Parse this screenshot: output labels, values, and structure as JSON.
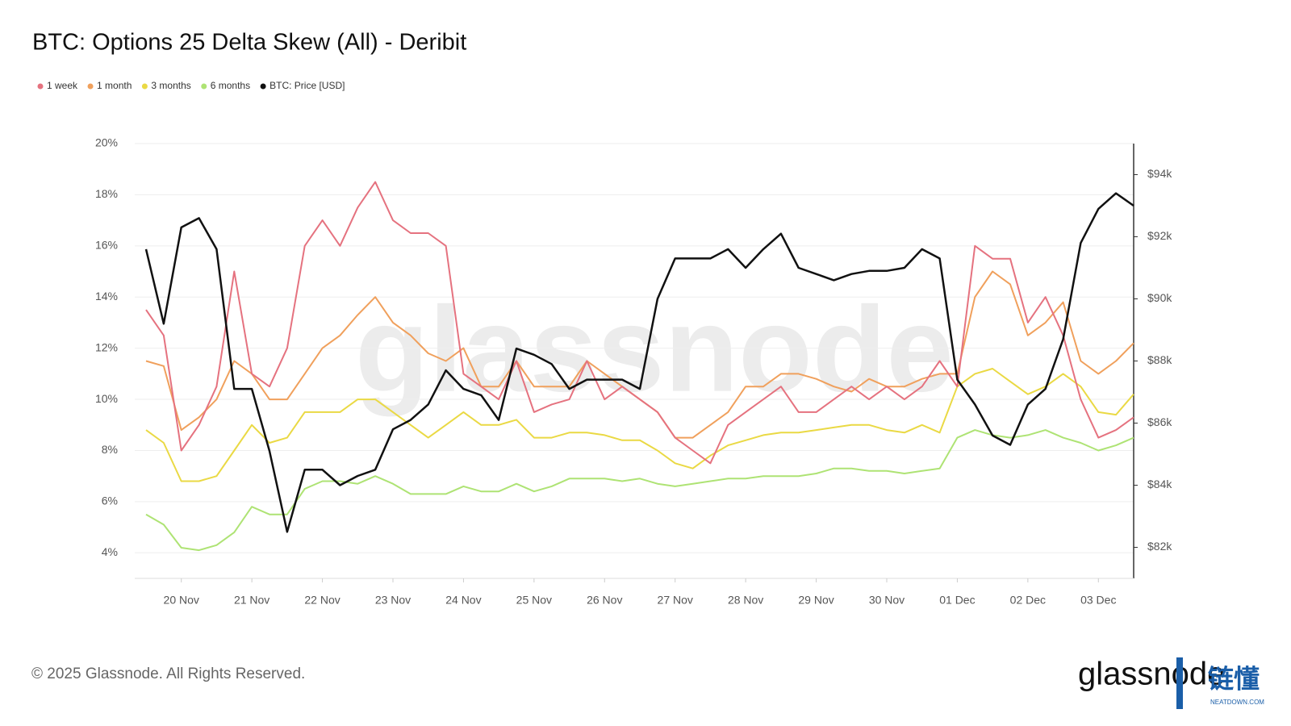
{
  "chart_data": {
    "type": "line",
    "title": "BTC: Options 25 Delta Skew (All) - Deribit",
    "watermark": "glassnode",
    "footer": "© 2025 Glassnode. All Rights Reserved.",
    "logo": "glassnode",
    "badge": {
      "title": "链懂",
      "subtitle": "NEATDOWN.COM"
    },
    "legend": "top-left",
    "grid": true,
    "categories": [
      null,
      null,
      "20 Nov",
      null,
      null,
      null,
      "21 Nov",
      null,
      null,
      null,
      "22 Nov",
      null,
      null,
      null,
      "23 Nov",
      null,
      null,
      null,
      "24 Nov",
      null,
      null,
      null,
      "25 Nov",
      null,
      null,
      null,
      "26 Nov",
      null,
      null,
      null,
      "27 Nov",
      null,
      null,
      null,
      "28 Nov",
      null,
      null,
      null,
      "29 Nov",
      null,
      null,
      null,
      "30 Nov",
      null,
      null,
      null,
      "01 Dec",
      null,
      null,
      null,
      "02 Dec",
      null,
      null,
      null,
      "03 Dec",
      null,
      null
    ],
    "ylim": [
      3,
      20
    ],
    "yticks": [
      {
        "value": 4,
        "label": "4%"
      },
      {
        "value": 6,
        "label": "6%"
      },
      {
        "value": 8,
        "label": "8%"
      },
      {
        "value": 10,
        "label": "10%"
      },
      {
        "value": 12,
        "label": "12%"
      },
      {
        "value": 14,
        "label": "14%"
      },
      {
        "value": 16,
        "label": "16%"
      },
      {
        "value": 18,
        "label": "18%"
      },
      {
        "value": 20,
        "label": "20%"
      }
    ],
    "y2lim": [
      81000,
      95000
    ],
    "y2ticks": [
      {
        "value": 82000,
        "label": "$82k"
      },
      {
        "value": 84000,
        "label": "$84k"
      },
      {
        "value": 86000,
        "label": "$86k"
      },
      {
        "value": 88000,
        "label": "$88k"
      },
      {
        "value": 90000,
        "label": "$90k"
      },
      {
        "value": 92000,
        "label": "$92k"
      },
      {
        "value": 94000,
        "label": "$94k"
      }
    ],
    "series": [
      {
        "name": "1 week",
        "color": "#e5727f",
        "values": [
          13.5,
          12.5,
          8,
          9,
          10.5,
          15,
          11,
          10.5,
          12,
          16,
          17,
          16,
          17.5,
          18.5,
          17,
          16.5,
          16.5,
          16,
          11,
          10.5,
          10,
          11.5,
          9.5,
          9.8,
          10,
          11.5,
          10,
          10.5,
          10,
          9.5,
          8.5,
          8,
          7.5,
          9,
          9.5,
          10,
          10.5,
          9.5,
          9.5,
          10,
          10.5,
          10,
          10.5,
          10,
          10.5,
          11.5,
          10.5,
          16,
          15.5,
          15.5,
          13,
          14,
          12.5,
          10,
          8.5,
          8.8,
          9.3
        ]
      },
      {
        "name": "1 month",
        "color": "#f0a05c",
        "values": [
          11.5,
          11.3,
          8.8,
          9.3,
          10,
          11.5,
          11,
          10,
          10,
          11,
          12,
          12.5,
          13.3,
          14,
          13,
          12.5,
          11.8,
          11.5,
          12,
          10.5,
          10.5,
          11.5,
          10.5,
          10.5,
          10.5,
          11.5,
          11,
          10.5,
          10,
          9.5,
          8.5,
          8.5,
          9,
          9.5,
          10.5,
          10.5,
          11,
          11,
          10.8,
          10.5,
          10.3,
          10.8,
          10.5,
          10.5,
          10.8,
          11,
          11,
          14,
          15,
          14.5,
          12.5,
          13,
          13.8,
          11.5,
          11,
          11.5,
          12.2
        ]
      },
      {
        "name": "3 months",
        "color": "#ead944",
        "values": [
          8.8,
          8.3,
          6.8,
          6.8,
          7,
          8,
          9,
          8.3,
          8.5,
          9.5,
          9.5,
          9.5,
          10,
          10,
          9.5,
          9,
          8.5,
          9,
          9.5,
          9,
          9,
          9.2,
          8.5,
          8.5,
          8.7,
          8.7,
          8.6,
          8.4,
          8.4,
          8,
          7.5,
          7.3,
          7.8,
          8.2,
          8.4,
          8.6,
          8.7,
          8.7,
          8.8,
          8.9,
          9,
          9,
          8.8,
          8.7,
          9,
          8.7,
          10.5,
          11,
          11.2,
          10.7,
          10.2,
          10.5,
          11,
          10.5,
          9.5,
          9.4,
          10.2
        ]
      },
      {
        "name": "6 months",
        "color": "#aee374",
        "values": [
          5.5,
          5.1,
          4.2,
          4.1,
          4.3,
          4.8,
          5.8,
          5.5,
          5.5,
          6.5,
          6.8,
          6.8,
          6.7,
          7,
          6.7,
          6.3,
          6.3,
          6.3,
          6.6,
          6.4,
          6.4,
          6.7,
          6.4,
          6.6,
          6.9,
          6.9,
          6.9,
          6.8,
          6.9,
          6.7,
          6.6,
          6.7,
          6.8,
          6.9,
          6.9,
          7,
          7,
          7,
          7.1,
          7.3,
          7.3,
          7.2,
          7.2,
          7.1,
          7.2,
          7.3,
          8.5,
          8.8,
          8.6,
          8.5,
          8.6,
          8.8,
          8.5,
          8.3,
          8,
          8.2,
          8.5
        ]
      },
      {
        "name": "BTC: Price [USD]",
        "color": "#111111",
        "axis": "y2",
        "values": [
          91600,
          89200,
          92300,
          92600,
          91600,
          87100,
          87100,
          85100,
          82500,
          84500,
          84500,
          84000,
          84300,
          84500,
          85800,
          86100,
          86600,
          87700,
          87100,
          86900,
          86100,
          88400,
          88200,
          87900,
          87100,
          87400,
          87400,
          87400,
          87100,
          90000,
          91300,
          91300,
          91300,
          91600,
          91000,
          91600,
          92100,
          91000,
          90800,
          90600,
          90800,
          90900,
          90900,
          91000,
          91600,
          91300,
          87400,
          86600,
          85600,
          85300,
          86600,
          87100,
          88700,
          91800,
          92900,
          93400,
          93000
        ]
      }
    ]
  }
}
